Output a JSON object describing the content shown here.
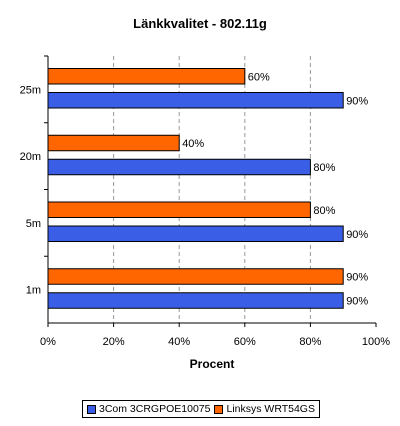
{
  "chart_data": {
    "type": "bar",
    "orientation": "horizontal",
    "title": "Länkkvalitet - 802.11g",
    "xlabel": "Procent",
    "ylabel": "",
    "categories": [
      "25m",
      "20m",
      "5m",
      "1m"
    ],
    "xlim": [
      0,
      100
    ],
    "xticks": [
      "0%",
      "20%",
      "40%",
      "60%",
      "80%",
      "100%"
    ],
    "grid": "vertical dashed",
    "legend_position": "bottom",
    "series": [
      {
        "name": "Linksys WRT54GS",
        "color": "#ff6600",
        "values": [
          60,
          40,
          80,
          90
        ],
        "labels": [
          "60%",
          "40%",
          "80%",
          "90%"
        ]
      },
      {
        "name": "3Com 3CRGPOE10075",
        "color": "#3a5fe6",
        "values": [
          90,
          80,
          90,
          90
        ],
        "labels": [
          "90%",
          "80%",
          "90%",
          "90%"
        ]
      }
    ],
    "legend_order": [
      "3Com 3CRGPOE10075",
      "Linksys WRT54GS"
    ]
  }
}
